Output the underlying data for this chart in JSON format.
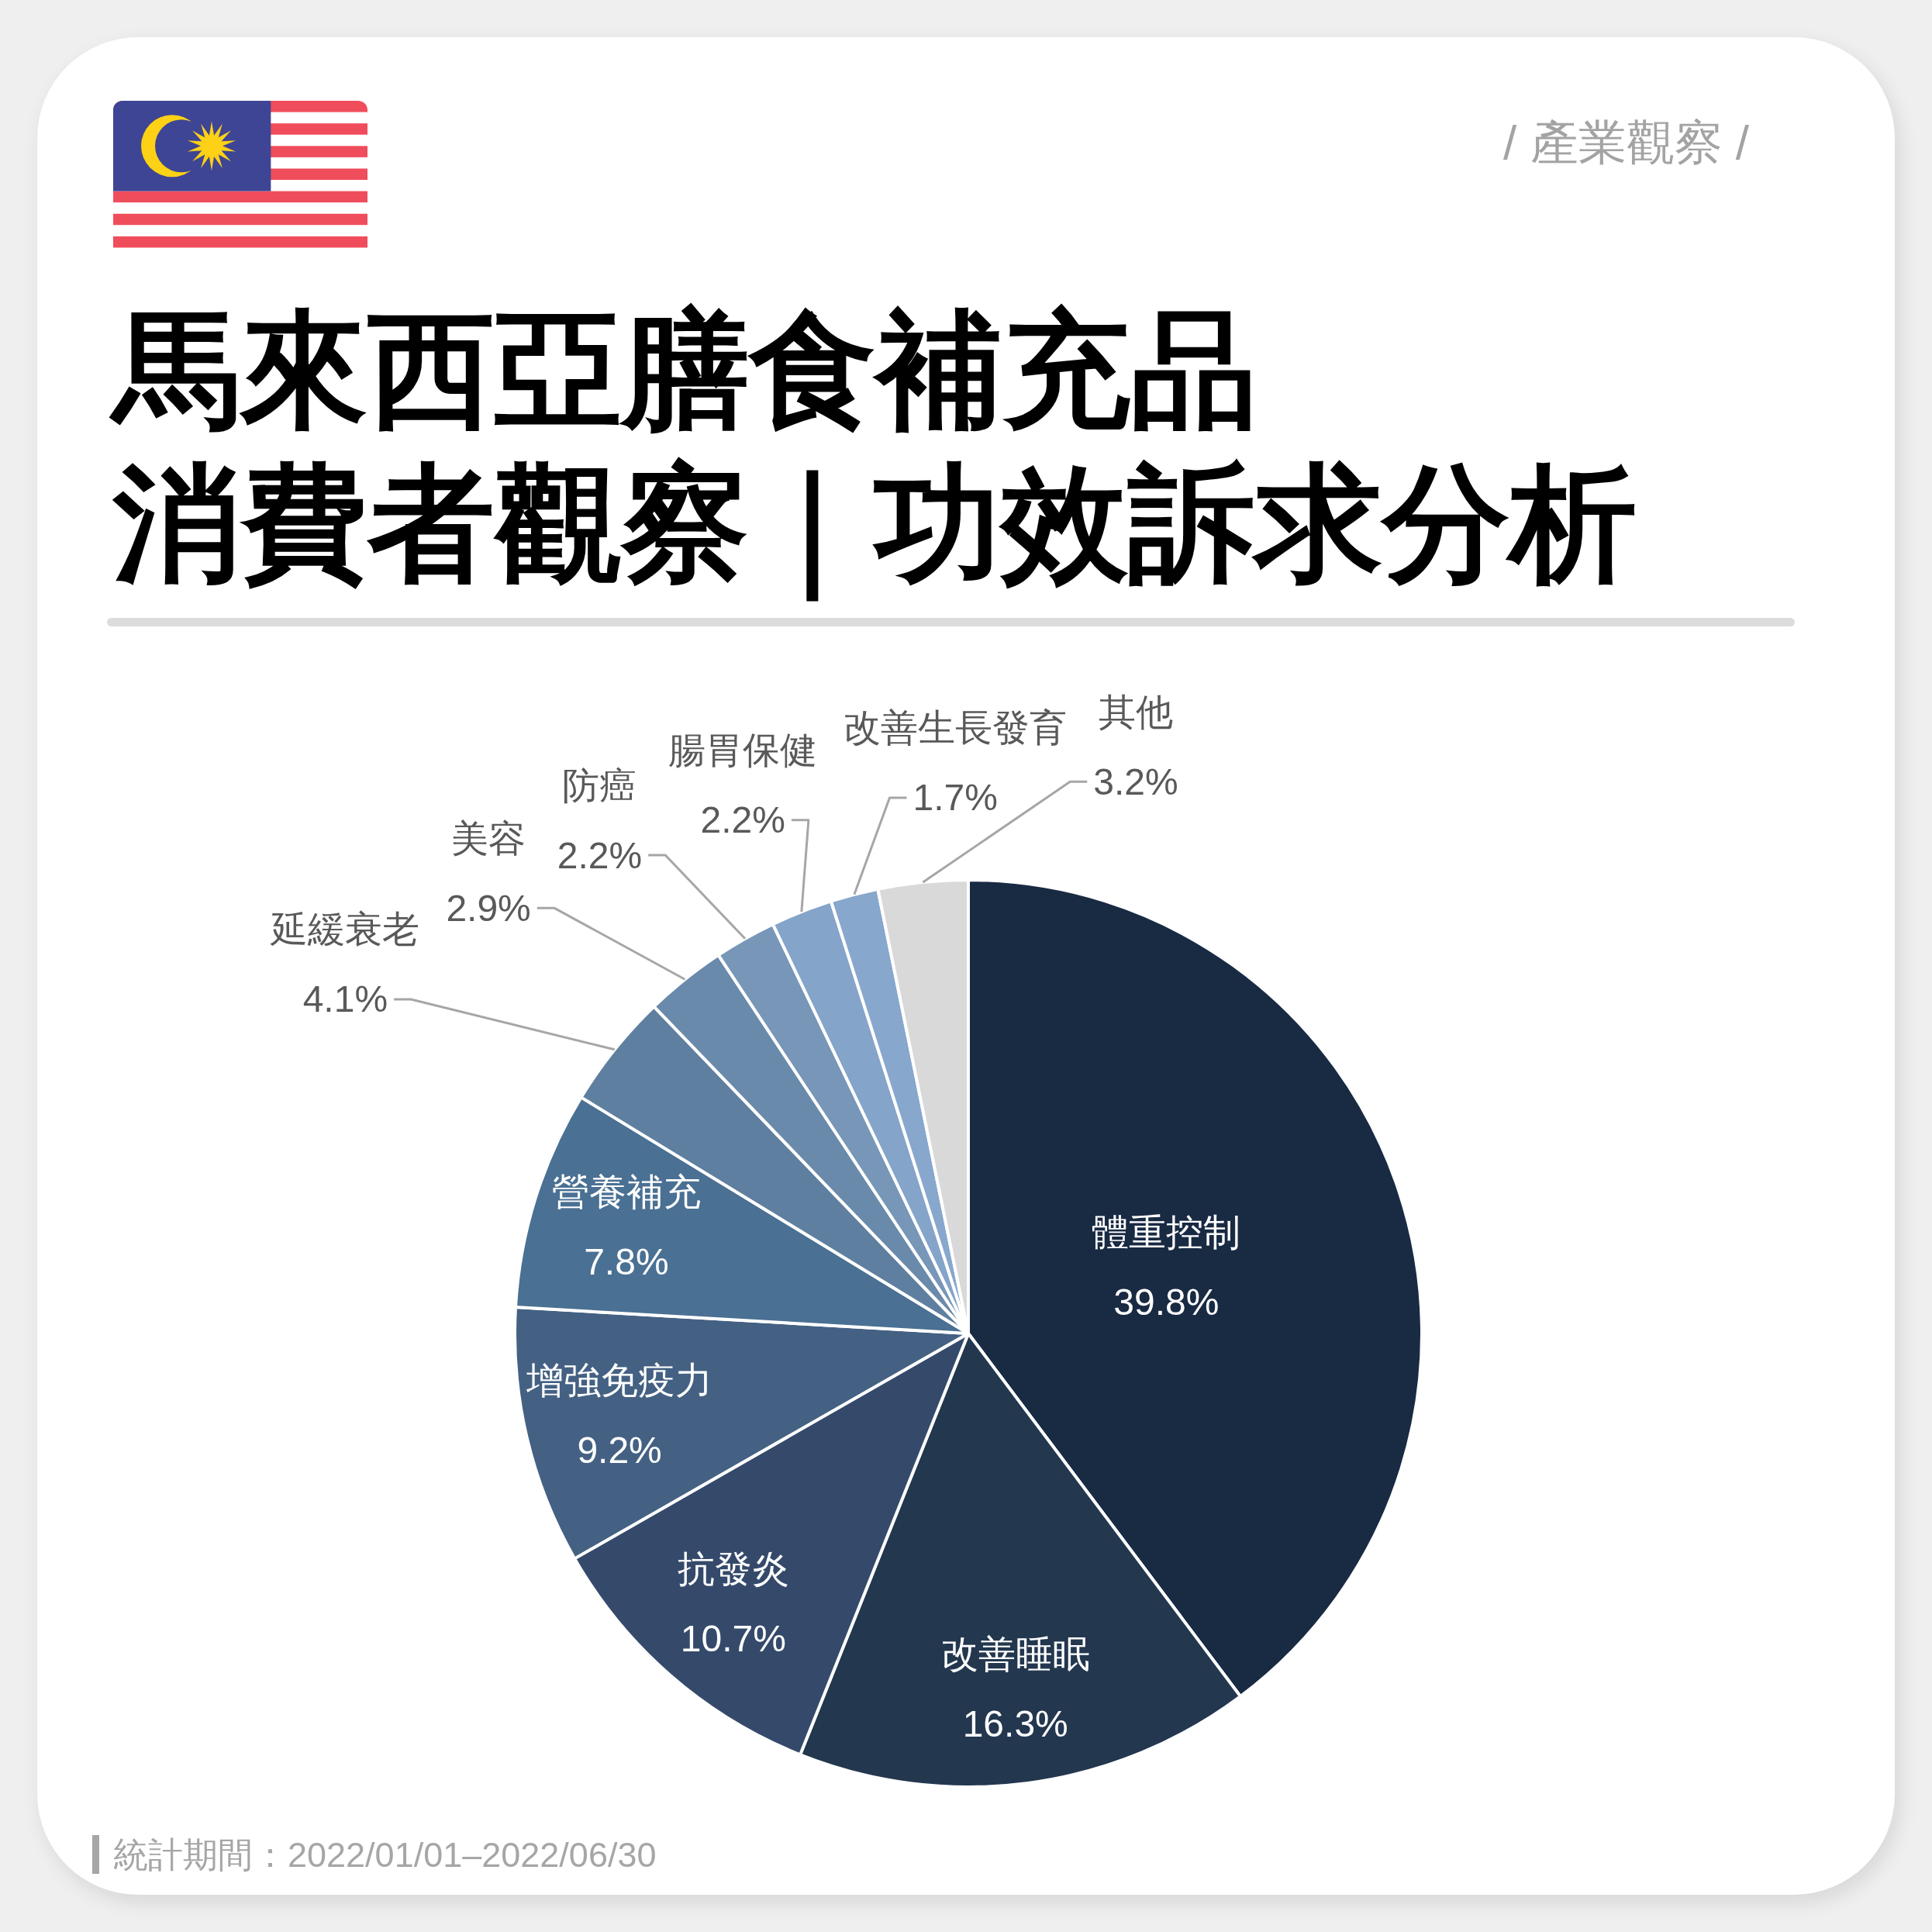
{
  "chart_data": {
    "type": "pie",
    "title": "馬來西亞膳食補充品",
    "subtitle": "消費者觀察｜功效訴求分析",
    "categories": [
      "體重控制",
      "改善睡眠",
      "抗發炎",
      "增強免疫力",
      "營養補充",
      "延緩衰老",
      "美容",
      "防癌",
      "腸胃保健",
      "改善生長發育",
      "其他"
    ],
    "values": [
      39.8,
      16.3,
      10.7,
      9.2,
      7.8,
      4.1,
      2.9,
      2.2,
      2.2,
      1.7,
      3.2
    ],
    "value_labels": [
      "39.8%",
      "16.3%",
      "10.7%",
      "9.2%",
      "7.8%",
      "4.1%",
      "2.9%",
      "2.2%",
      "2.2%",
      "1.7%",
      "3.2%"
    ],
    "colors": [
      "#192a43",
      "#23374f",
      "#354a6b",
      "#446183",
      "#4a7093",
      "#5f7fa0",
      "#6a8aab",
      "#7796b8",
      "#84a4c9",
      "#87a7cd",
      "#d9d9d9"
    ],
    "annotations": [
      "/ 產業觀察 /",
      "統計期間：2022/01/01–2022/06/30"
    ]
  }
}
